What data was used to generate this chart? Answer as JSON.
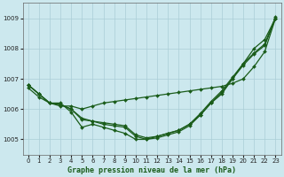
{
  "xlabel": "Graphe pression niveau de la mer (hPa)",
  "ylim": [
    1004.5,
    1009.5
  ],
  "xlim": [
    -0.5,
    23.5
  ],
  "yticks": [
    1005,
    1006,
    1007,
    1008,
    1009
  ],
  "xticks": [
    0,
    1,
    2,
    3,
    4,
    5,
    6,
    7,
    8,
    9,
    10,
    11,
    12,
    13,
    14,
    15,
    16,
    17,
    18,
    19,
    20,
    21,
    22,
    23
  ],
  "bg_color": "#cce8ee",
  "grid_color": "#aacdd6",
  "line_color": "#1a5c1a",
  "line1": [
    1006.8,
    1006.5,
    1006.2,
    1006.2,
    1005.9,
    1005.4,
    1005.5,
    1005.4,
    1005.3,
    1005.2,
    1005.0,
    1005.0,
    1005.1,
    1005.2,
    1005.3,
    1005.5,
    1005.8,
    1006.2,
    1006.5,
    1007.0,
    1007.5,
    1008.0,
    1008.3,
    1009.0
  ],
  "line2": [
    1006.7,
    1006.4,
    1006.2,
    1006.1,
    1006.1,
    1006.0,
    1006.1,
    1006.2,
    1006.25,
    1006.3,
    1006.35,
    1006.4,
    1006.45,
    1006.5,
    1006.55,
    1006.6,
    1006.65,
    1006.7,
    1006.75,
    1006.85,
    1007.0,
    1007.4,
    1007.9,
    1009.0
  ],
  "line3": [
    1006.8,
    1006.5,
    1006.2,
    1006.15,
    1006.0,
    1005.7,
    1005.6,
    1005.55,
    1005.5,
    1005.45,
    1005.15,
    1005.05,
    1005.1,
    1005.2,
    1005.3,
    1005.5,
    1005.85,
    1006.25,
    1006.6,
    1007.05,
    1007.5,
    1007.85,
    1008.15,
    1009.05
  ],
  "line4": [
    1006.8,
    1006.5,
    1006.2,
    1006.15,
    1006.0,
    1005.65,
    1005.6,
    1005.5,
    1005.45,
    1005.4,
    1005.1,
    1005.0,
    1005.05,
    1005.15,
    1005.25,
    1005.45,
    1005.8,
    1006.2,
    1006.55,
    1007.0,
    1007.45,
    1007.82,
    1008.1,
    1009.0
  ]
}
